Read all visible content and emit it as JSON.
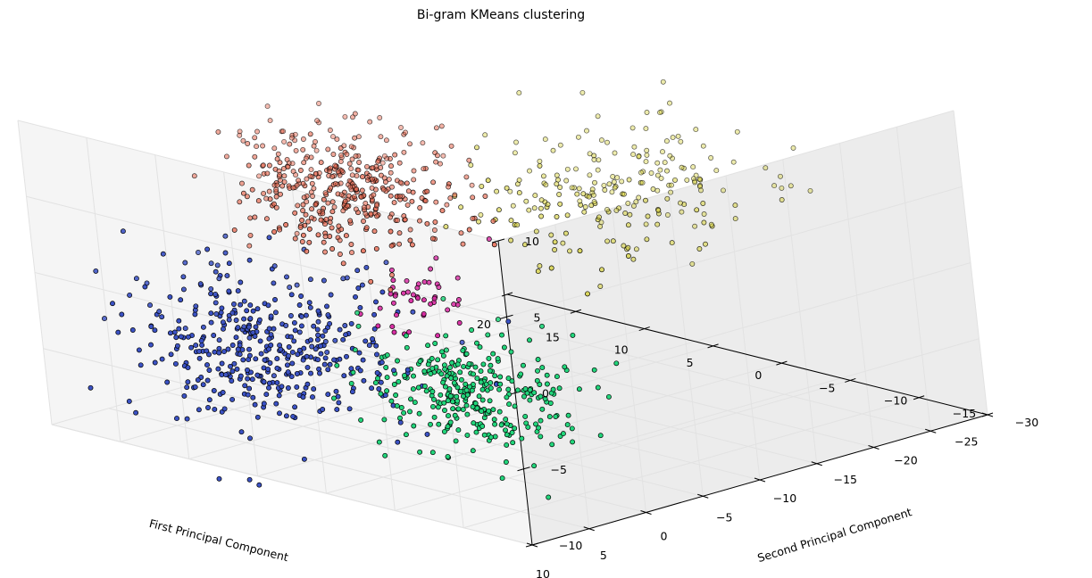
{
  "chart_data": {
    "type": "scatter",
    "projection": "3d",
    "title": "Bi-gram KMeans clustering",
    "xlabel": "First Principal Component",
    "ylabel": "Second Principal Component",
    "zlabel": "",
    "xlim": [
      -15,
      20
    ],
    "ylim": [
      -30,
      10
    ],
    "zlim": [
      -10,
      10
    ],
    "x_ticks": [
      "20",
      "15",
      "10",
      "5",
      "0",
      "−5",
      "−10",
      "−15"
    ],
    "y_ticks": [
      "10",
      "5",
      "0",
      "−5",
      "−10",
      "−15",
      "−20",
      "−25",
      "−30"
    ],
    "z_ticks": [
      "10",
      "5",
      "0",
      "−5",
      "−10"
    ],
    "grid": true,
    "legend": "none",
    "clusters": [
      {
        "color": "#3b52c4",
        "center": [
          5.0,
          8.0,
          -2.0
        ],
        "spread": [
          4.0,
          3.5,
          2.5
        ],
        "count": 430
      },
      {
        "color": "#e66a52",
        "center": [
          8.5,
          -4.0,
          5.0
        ],
        "spread": [
          3.0,
          3.0,
          1.8
        ],
        "count": 420
      },
      {
        "color": "#22d57b",
        "center": [
          -3.0,
          0.0,
          -5.0
        ],
        "spread": [
          3.0,
          2.5,
          1.8
        ],
        "count": 320
      },
      {
        "color": "#d8d347",
        "center": [
          0.5,
          -18.0,
          4.0
        ],
        "spread": [
          3.0,
          5.0,
          2.0
        ],
        "count": 230
      },
      {
        "color": "#d82aa2",
        "center": [
          2.0,
          -2.0,
          -0.5
        ],
        "spread": [
          1.5,
          1.5,
          1.2
        ],
        "count": 45
      }
    ]
  }
}
